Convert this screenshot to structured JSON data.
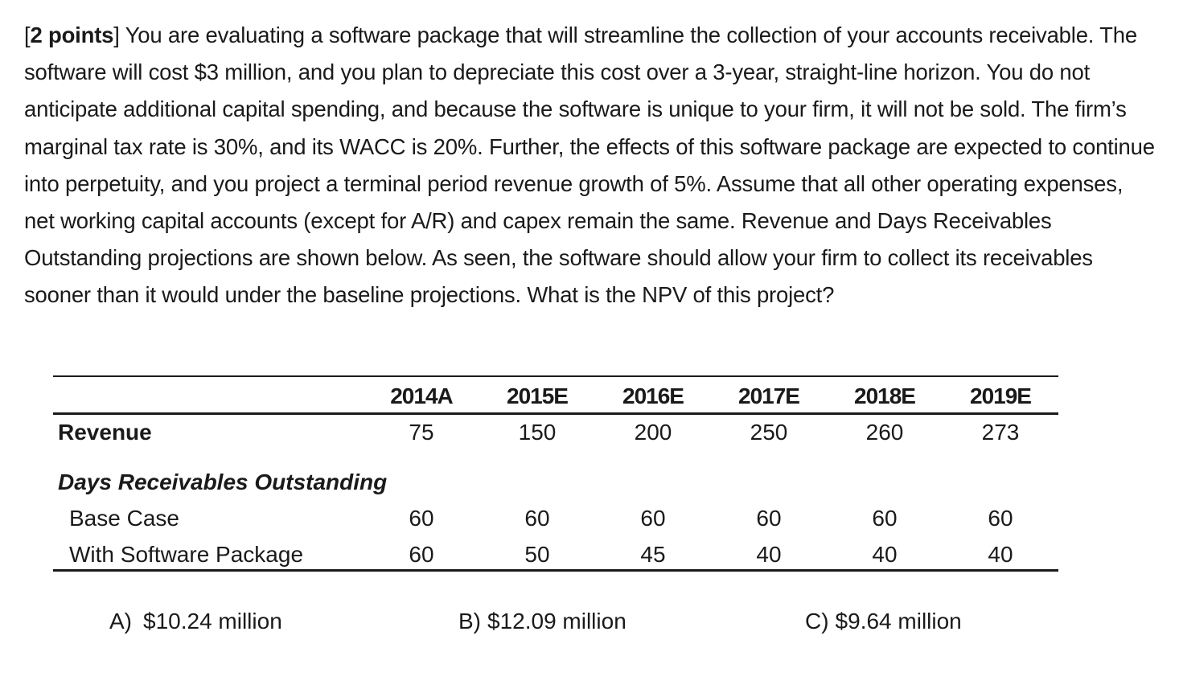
{
  "question": {
    "points_label": "2 points",
    "open_bracket": "[",
    "body": "] You are evaluating a software package that will streamline the collection of your accounts receivable.  The software will cost $3 million, and you plan to depreciate this cost over a 3-year, straight-line horizon.  You do not anticipate additional capital spending, and because the software is unique to your firm, it will not be sold.  The firm’s marginal tax rate is 30%, and its WACC is 20%.  Further, the effects of this software package are expected to continue into perpetuity, and you project a terminal period revenue growth of 5%.  Assume that all other operating expenses, net working capital accounts (except for A/R) and capex remain the same.  Revenue and Days Receivables Outstanding projections are shown below.  As seen, the software should allow your firm to collect its receivables sooner than it would under the baseline projections.  What is the NPV of this project?"
  },
  "table": {
    "years": [
      "2014A",
      "2015E",
      "2016E",
      "2017E",
      "2018E",
      "2019E"
    ],
    "revenue_label": "Revenue",
    "revenue": [
      "75",
      "150",
      "200",
      "250",
      "260",
      "273"
    ],
    "dro_label": "Days Receivables Outstanding",
    "base_label": "Base Case",
    "base": [
      "60",
      "60",
      "60",
      "60",
      "60",
      "60"
    ],
    "software_label": "With Software Package",
    "software": [
      "60",
      "50",
      "45",
      "40",
      "40",
      "40"
    ]
  },
  "answers": [
    {
      "letter": "A)",
      "text": "$10.24 million"
    },
    {
      "letter": "B)",
      "text": "$12.09 million"
    },
    {
      "letter": "C)",
      "text": "$9.64 million"
    }
  ]
}
